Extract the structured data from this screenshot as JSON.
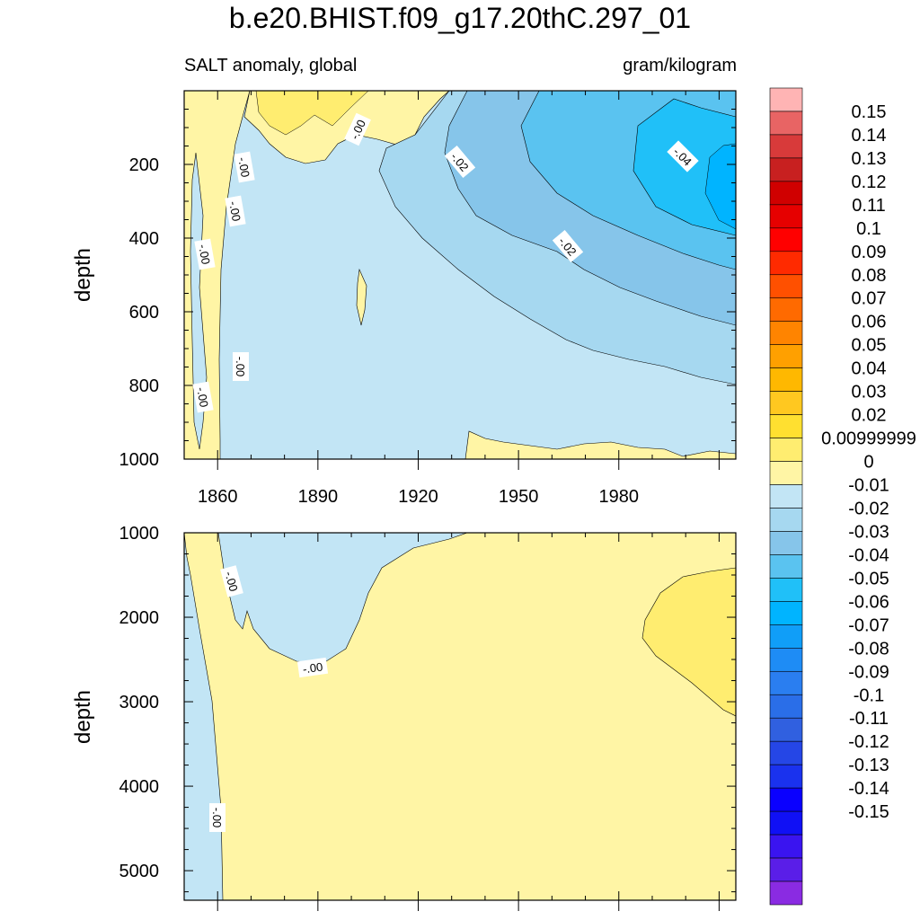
{
  "title": "b.e20.BHIST.f09_g17.20thC.297_01",
  "subtitle_left": "SALT anomaly, global",
  "subtitle_right": "gram/kilogram",
  "chart_data": [
    {
      "type": "heatmap",
      "panel": "upper",
      "xlabel": "",
      "ylabel": "depth",
      "xlim": [
        1850,
        2015
      ],
      "ylim": [
        1000,
        0
      ],
      "xticks": [
        1860,
        1890,
        1920,
        1950,
        1980
      ],
      "yticks": [
        200,
        400,
        600,
        800,
        1000
      ],
      "contour_labels": [
        "-.00",
        "-.00",
        "-.00",
        "-.00",
        "-.00",
        "-.00",
        "-.02",
        "-.02",
        "-.04"
      ],
      "regions": [
        {
          "x": [
            1850,
            1854
          ],
          "depth": [
            0,
            1000
          ],
          "value": 0.005
        },
        {
          "x": [
            1850,
            1870
          ],
          "depth": [
            0,
            500
          ],
          "value": 0.005
        },
        {
          "x": [
            1870,
            1910
          ],
          "depth": [
            0,
            130
          ],
          "value": 0.005
        },
        {
          "x": [
            1930,
            2015
          ],
          "depth": [
            950,
            1000
          ],
          "value": 0.005
        },
        {
          "x": [
            1854,
            2015
          ],
          "depth": [
            130,
            1000
          ],
          "value": -0.005
        },
        {
          "x": [
            1920,
            2015
          ],
          "depth": [
            100,
            500
          ],
          "value": -0.015
        },
        {
          "x": [
            1960,
            2015
          ],
          "depth": [
            100,
            400
          ],
          "value": -0.025
        },
        {
          "x": [
            1975,
            2015
          ],
          "depth": [
            150,
            350
          ],
          "value": -0.035
        }
      ]
    },
    {
      "type": "heatmap",
      "panel": "lower",
      "xlabel": "",
      "ylabel": "depth",
      "xlim": [
        1850,
        2015
      ],
      "ylim": [
        5350,
        1000
      ],
      "yticks": [
        1000,
        2000,
        3000,
        4000,
        5000
      ],
      "contour_labels": [
        "-.00",
        "-.00",
        "-.00"
      ],
      "regions": [
        {
          "x": [
            1850,
            2015
          ],
          "depth": [
            1000,
            5350
          ],
          "value": 0.005
        },
        {
          "x": [
            1850,
            1860
          ],
          "depth": [
            1000,
            5350
          ],
          "value": -0.005
        },
        {
          "x": [
            1860,
            1905
          ],
          "depth": [
            1000,
            2500
          ],
          "value": -0.005
        },
        {
          "x": [
            1985,
            2015
          ],
          "depth": [
            1500,
            3150
          ],
          "value": 0.015
        }
      ]
    }
  ],
  "colorbar": {
    "colors": [
      "#8a2be2",
      "#5a1ee8",
      "#3a14f0",
      "#1010f5",
      "#0a00ff",
      "#1a32ee",
      "#2546e6",
      "#3060e0",
      "#2a6ee8",
      "#2a7ef0",
      "#1e8cf5",
      "#109ef8",
      "#00b4ff",
      "#20c0f8",
      "#5ac3f0",
      "#86c5ea",
      "#a6d8f0",
      "#c2e5f5",
      "#fff5a5",
      "#ffed70",
      "#ffe030",
      "#ffc820",
      "#ffb800",
      "#ffa000",
      "#ff8400",
      "#ff6a00",
      "#ff5000",
      "#ff2a00",
      "#ff0000",
      "#e60000",
      "#d00000",
      "#c82020",
      "#d83a3a",
      "#e86464",
      "#ffb4b4"
    ],
    "labels": [
      "0.15",
      "0.14",
      "0.13",
      "0.12",
      "0.11",
      "0.1",
      "0.09",
      "0.08",
      "0.07",
      "0.06",
      "0.05",
      "0.04",
      "0.03",
      "0.02",
      "0.00999999",
      "0",
      "-0.01",
      "-0.02",
      "-0.03",
      "-0.04",
      "-0.05",
      "-0.06",
      "-0.07",
      "-0.08",
      "-0.09",
      "-0.1",
      "-0.11",
      "-0.12",
      "-0.13",
      "-0.14",
      "-0.15"
    ]
  }
}
